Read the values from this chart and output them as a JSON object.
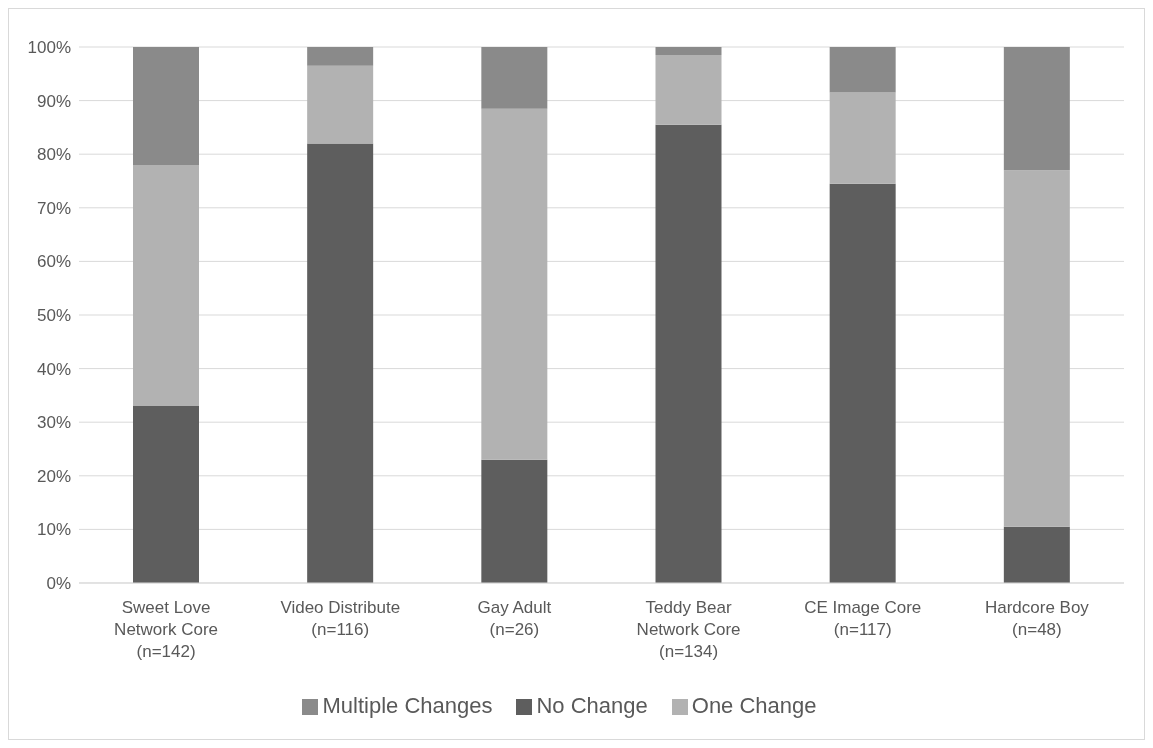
{
  "chart_data": {
    "type": "bar",
    "stacked": true,
    "categories": [
      "Sweet Love\nNetwork Core\n(n=142)",
      "Video Distribute\n(n=116)",
      "Gay Adult\n(n=26)",
      "Teddy Bear\nNetwork Core\n(n=134)",
      "CE Image Core\n(n=117)",
      "Hardcore Boy\n(n=48)"
    ],
    "series": [
      {
        "name": "No Change",
        "color": "#5e5e5e",
        "values": [
          33,
          82,
          23,
          85.5,
          74.5,
          10.5
        ]
      },
      {
        "name": "One Change",
        "color": "#b2b2b2",
        "values": [
          45,
          14.5,
          65.5,
          13,
          17,
          66.5
        ]
      },
      {
        "name": "Multiple Changes",
        "color": "#8a8a8a",
        "values": [
          22,
          3.5,
          11.5,
          1.5,
          8.5,
          23
        ]
      }
    ],
    "ylim": [
      0,
      100
    ],
    "yticks": [
      {
        "value": 0,
        "label": "0%"
      },
      {
        "value": 10,
        "label": "10%"
      },
      {
        "value": 20,
        "label": "20%"
      },
      {
        "value": 30,
        "label": "30%"
      },
      {
        "value": 40,
        "label": "40%"
      },
      {
        "value": 50,
        "label": "50%"
      },
      {
        "value": 60,
        "label": "60%"
      },
      {
        "value": 70,
        "label": "70%"
      },
      {
        "value": 80,
        "label": "80%"
      },
      {
        "value": 90,
        "label": "90%"
      },
      {
        "value": 100,
        "label": "100%"
      }
    ],
    "grid": "y",
    "legend": "bottom"
  }
}
